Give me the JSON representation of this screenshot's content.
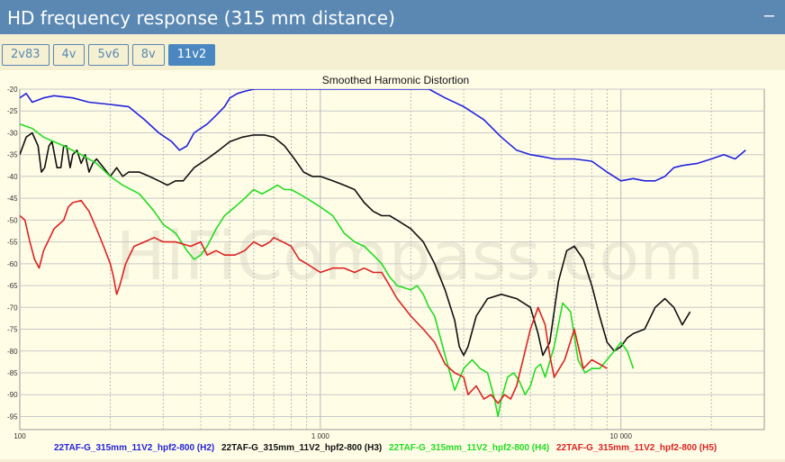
{
  "header": {
    "title": "HD frequency response (315 mm distance)",
    "collapse_label": "–"
  },
  "tabs": [
    {
      "label": "2v83",
      "active": false
    },
    {
      "label": "4v",
      "active": false
    },
    {
      "label": "5v6",
      "active": false
    },
    {
      "label": "8v",
      "active": false
    },
    {
      "label": "11v2",
      "active": true
    }
  ],
  "watermark": "HiFiCompass.com",
  "chart_data": {
    "type": "line",
    "title": "Smoothed Harmonic Distortion",
    "xscale": "log",
    "xlim": [
      100,
      30000
    ],
    "ylim": [
      -98,
      -20
    ],
    "x_ticks": [
      {
        "value": 100,
        "label": "100"
      },
      {
        "value": 1000,
        "label": "1 000"
      },
      {
        "value": 10000,
        "label": "10 000"
      }
    ],
    "y_ticks": [
      -20,
      -25,
      -30,
      -35,
      -40,
      -45,
      -50,
      -55,
      -60,
      -65,
      -70,
      -75,
      -80,
      -85,
      -90,
      -95
    ],
    "grid": true,
    "legend_placement": "bottom",
    "series": [
      {
        "name": "22TAF-G_315mm_11V2_hpf2-800 (H2)",
        "color": "#2222dd",
        "points": [
          [
            100,
            -22
          ],
          [
            105,
            -21
          ],
          [
            110,
            -23
          ],
          [
            120,
            -22
          ],
          [
            130,
            -21.5
          ],
          [
            150,
            -22
          ],
          [
            170,
            -23
          ],
          [
            200,
            -23.5
          ],
          [
            230,
            -24
          ],
          [
            260,
            -27
          ],
          [
            290,
            -30
          ],
          [
            320,
            -32
          ],
          [
            340,
            -34
          ],
          [
            360,
            -33
          ],
          [
            380,
            -30
          ],
          [
            420,
            -28
          ],
          [
            450,
            -26
          ],
          [
            480,
            -24
          ],
          [
            500,
            -22
          ],
          [
            530,
            -21
          ],
          [
            560,
            -20.5
          ],
          [
            600,
            -20
          ],
          [
            2300,
            -20
          ],
          [
            2600,
            -22
          ],
          [
            3000,
            -24
          ],
          [
            3500,
            -27
          ],
          [
            4000,
            -31
          ],
          [
            4500,
            -34
          ],
          [
            5000,
            -35
          ],
          [
            5500,
            -35.5
          ],
          [
            6000,
            -36
          ],
          [
            7000,
            -36
          ],
          [
            8000,
            -36.5
          ],
          [
            9000,
            -39
          ],
          [
            10000,
            -41
          ],
          [
            11000,
            -40.5
          ],
          [
            12000,
            -41
          ],
          [
            13000,
            -41
          ],
          [
            14000,
            -40
          ],
          [
            15000,
            -38
          ],
          [
            16000,
            -37.5
          ],
          [
            18000,
            -37
          ],
          [
            20000,
            -36
          ],
          [
            22000,
            -35
          ],
          [
            24000,
            -36
          ],
          [
            26000,
            -34
          ]
        ]
      },
      {
        "name": "22TAF-G_315mm_11V2_hpf2-800 (H3)",
        "color": "#111111",
        "points": [
          [
            100,
            -35
          ],
          [
            105,
            -31
          ],
          [
            110,
            -30
          ],
          [
            115,
            -33
          ],
          [
            118,
            -39
          ],
          [
            121,
            -38
          ],
          [
            125,
            -33
          ],
          [
            128,
            -32
          ],
          [
            133,
            -38
          ],
          [
            137,
            -38
          ],
          [
            140,
            -33
          ],
          [
            143,
            -33
          ],
          [
            147,
            -38
          ],
          [
            150,
            -35
          ],
          [
            155,
            -34
          ],
          [
            160,
            -37
          ],
          [
            165,
            -35
          ],
          [
            170,
            -39
          ],
          [
            175,
            -37
          ],
          [
            180,
            -36
          ],
          [
            190,
            -38
          ],
          [
            200,
            -40
          ],
          [
            210,
            -38
          ],
          [
            220,
            -40
          ],
          [
            230,
            -39
          ],
          [
            250,
            -39
          ],
          [
            270,
            -40
          ],
          [
            290,
            -41
          ],
          [
            310,
            -42
          ],
          [
            330,
            -41
          ],
          [
            350,
            -41
          ],
          [
            380,
            -38
          ],
          [
            420,
            -36
          ],
          [
            460,
            -34
          ],
          [
            500,
            -32
          ],
          [
            550,
            -31
          ],
          [
            600,
            -30.5
          ],
          [
            650,
            -30.5
          ],
          [
            700,
            -31
          ],
          [
            760,
            -33
          ],
          [
            820,
            -36
          ],
          [
            880,
            -39
          ],
          [
            940,
            -40
          ],
          [
            1000,
            -40
          ],
          [
            1100,
            -41
          ],
          [
            1200,
            -42
          ],
          [
            1300,
            -43
          ],
          [
            1400,
            -46
          ],
          [
            1500,
            -48
          ],
          [
            1600,
            -49
          ],
          [
            1700,
            -49
          ],
          [
            1800,
            -50
          ],
          [
            2000,
            -52
          ],
          [
            2200,
            -55
          ],
          [
            2400,
            -60
          ],
          [
            2600,
            -66
          ],
          [
            2800,
            -73
          ],
          [
            2900,
            -79
          ],
          [
            3000,
            -81
          ],
          [
            3100,
            -79
          ],
          [
            3300,
            -72
          ],
          [
            3600,
            -68
          ],
          [
            4000,
            -67
          ],
          [
            4500,
            -68
          ],
          [
            5000,
            -70
          ],
          [
            5300,
            -76
          ],
          [
            5500,
            -81
          ],
          [
            5800,
            -78
          ],
          [
            6200,
            -64
          ],
          [
            6600,
            -57
          ],
          [
            7000,
            -56
          ],
          [
            7500,
            -59
          ],
          [
            8000,
            -65
          ],
          [
            8500,
            -72
          ],
          [
            9000,
            -78
          ],
          [
            9500,
            -80
          ],
          [
            10000,
            -79
          ],
          [
            10500,
            -77
          ],
          [
            11000,
            -76
          ],
          [
            12000,
            -75
          ],
          [
            13000,
            -70
          ],
          [
            14000,
            -68
          ],
          [
            15000,
            -70
          ],
          [
            16000,
            -74
          ],
          [
            17000,
            -71
          ]
        ]
      },
      {
        "name": "22TAF-G_315mm_11V2_hpf2-800 (H4)",
        "color": "#22dd22",
        "points": [
          [
            100,
            -28
          ],
          [
            110,
            -29
          ],
          [
            120,
            -31
          ],
          [
            140,
            -33
          ],
          [
            160,
            -35
          ],
          [
            180,
            -37
          ],
          [
            200,
            -40
          ],
          [
            220,
            -42
          ],
          [
            250,
            -44
          ],
          [
            280,
            -48
          ],
          [
            300,
            -51
          ],
          [
            330,
            -53
          ],
          [
            360,
            -57
          ],
          [
            380,
            -59
          ],
          [
            400,
            -58
          ],
          [
            420,
            -56
          ],
          [
            450,
            -52
          ],
          [
            480,
            -49
          ],
          [
            520,
            -47
          ],
          [
            560,
            -45
          ],
          [
            600,
            -43
          ],
          [
            640,
            -44
          ],
          [
            680,
            -43
          ],
          [
            720,
            -42
          ],
          [
            760,
            -43
          ],
          [
            800,
            -43
          ],
          [
            850,
            -44
          ],
          [
            900,
            -45
          ],
          [
            1000,
            -47
          ],
          [
            1100,
            -49
          ],
          [
            1200,
            -53
          ],
          [
            1300,
            -55
          ],
          [
            1400,
            -56
          ],
          [
            1500,
            -58
          ],
          [
            1600,
            -60
          ],
          [
            1700,
            -63
          ],
          [
            1800,
            -65
          ],
          [
            1900,
            -65.5
          ],
          [
            2000,
            -66
          ],
          [
            2100,
            -65
          ],
          [
            2200,
            -67
          ],
          [
            2300,
            -70
          ],
          [
            2400,
            -72
          ],
          [
            2600,
            -81
          ],
          [
            2800,
            -89
          ],
          [
            3000,
            -84
          ],
          [
            3200,
            -82
          ],
          [
            3400,
            -84
          ],
          [
            3600,
            -85
          ],
          [
            3800,
            -91
          ],
          [
            3900,
            -95
          ],
          [
            4000,
            -91
          ],
          [
            4200,
            -86
          ],
          [
            4400,
            -85
          ],
          [
            4600,
            -87
          ],
          [
            4800,
            -90
          ],
          [
            5000,
            -88
          ],
          [
            5200,
            -84
          ],
          [
            5400,
            -83
          ],
          [
            5600,
            -86
          ],
          [
            6000,
            -79
          ],
          [
            6400,
            -69
          ],
          [
            6800,
            -71
          ],
          [
            7200,
            -82
          ],
          [
            7600,
            -85
          ],
          [
            8000,
            -84
          ],
          [
            8500,
            -84
          ],
          [
            9000,
            -82
          ],
          [
            9500,
            -80
          ],
          [
            10000,
            -78
          ],
          [
            10500,
            -80
          ],
          [
            11000,
            -84
          ]
        ]
      },
      {
        "name": "22TAF-G_315mm_11V2_hpf2-800 (H5)",
        "color": "#dd2222",
        "points": [
          [
            100,
            -49
          ],
          [
            104,
            -50
          ],
          [
            108,
            -55
          ],
          [
            112,
            -59
          ],
          [
            116,
            -61
          ],
          [
            120,
            -57
          ],
          [
            130,
            -52
          ],
          [
            140,
            -50
          ],
          [
            145,
            -47
          ],
          [
            150,
            -46
          ],
          [
            160,
            -45.5
          ],
          [
            170,
            -48
          ],
          [
            180,
            -52
          ],
          [
            190,
            -56
          ],
          [
            200,
            -60
          ],
          [
            205,
            -63
          ],
          [
            210,
            -67
          ],
          [
            215,
            -65
          ],
          [
            225,
            -60
          ],
          [
            240,
            -56
          ],
          [
            260,
            -55
          ],
          [
            280,
            -54
          ],
          [
            300,
            -55
          ],
          [
            330,
            -55
          ],
          [
            370,
            -56
          ],
          [
            400,
            -55
          ],
          [
            420,
            -58
          ],
          [
            450,
            -57
          ],
          [
            480,
            -58
          ],
          [
            520,
            -58
          ],
          [
            560,
            -57
          ],
          [
            600,
            -55
          ],
          [
            640,
            -56
          ],
          [
            680,
            -55
          ],
          [
            700,
            -54
          ],
          [
            750,
            -55
          ],
          [
            800,
            -56
          ],
          [
            850,
            -59
          ],
          [
            900,
            -60
          ],
          [
            1000,
            -62
          ],
          [
            1100,
            -61
          ],
          [
            1200,
            -61
          ],
          [
            1300,
            -62
          ],
          [
            1400,
            -61
          ],
          [
            1500,
            -62
          ],
          [
            1600,
            -62
          ],
          [
            1700,
            -65
          ],
          [
            1800,
            -68
          ],
          [
            2000,
            -72
          ],
          [
            2200,
            -75
          ],
          [
            2400,
            -78
          ],
          [
            2600,
            -83
          ],
          [
            2800,
            -85
          ],
          [
            3000,
            -86
          ],
          [
            3100,
            -90
          ],
          [
            3300,
            -88
          ],
          [
            3500,
            -91
          ],
          [
            3700,
            -90
          ],
          [
            3900,
            -92
          ],
          [
            4100,
            -90
          ],
          [
            4300,
            -91
          ],
          [
            4500,
            -88
          ],
          [
            4800,
            -80
          ],
          [
            5000,
            -75
          ],
          [
            5300,
            -70
          ],
          [
            5600,
            -74
          ],
          [
            5800,
            -81
          ],
          [
            6000,
            -86
          ],
          [
            6500,
            -82
          ],
          [
            7000,
            -75
          ],
          [
            7500,
            -84
          ],
          [
            8000,
            -82
          ],
          [
            8500,
            -83
          ],
          [
            9000,
            -84
          ]
        ]
      }
    ]
  }
}
